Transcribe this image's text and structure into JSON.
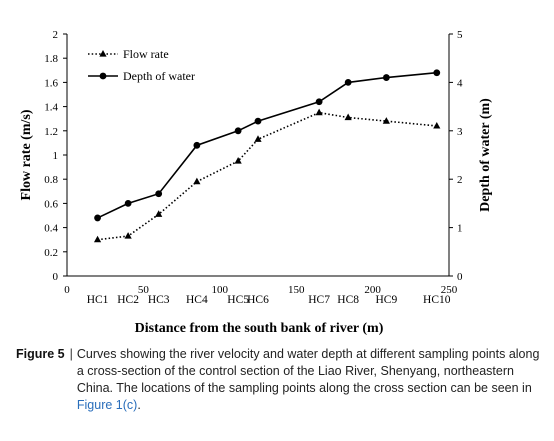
{
  "chart_data": {
    "type": "line",
    "xlabel": "Distance from the south bank of river (m)",
    "ylabel_left": "Flow rate (m/s)",
    "ylabel_right": "Depth of water (m)",
    "xlim": [
      0,
      250
    ],
    "ylim_left": [
      0,
      2
    ],
    "ylim_right": [
      0,
      5
    ],
    "x_ticks": [
      0,
      50,
      100,
      150,
      200,
      250
    ],
    "y_ticks_left": [
      0,
      0.2,
      0.4,
      0.6,
      0.8,
      1,
      1.2,
      1.4,
      1.6,
      1.8,
      2
    ],
    "y_ticks_right": [
      0,
      1,
      2,
      3,
      4,
      5
    ],
    "point_labels": [
      "HC1",
      "HC2",
      "HC3",
      "HC4",
      "HC5",
      "HC6",
      "HC7",
      "HC8",
      "HC9",
      "HC10"
    ],
    "x": [
      20,
      40,
      60,
      85,
      112,
      125,
      165,
      184,
      209,
      242
    ],
    "series": [
      {
        "name": "Flow rate",
        "axis": "left",
        "style": "dotted",
        "marker": "triangle",
        "values": [
          0.3,
          0.33,
          0.51,
          0.78,
          0.95,
          1.13,
          1.35,
          1.31,
          1.28,
          1.24
        ]
      },
      {
        "name": "Depth of water",
        "axis": "right",
        "style": "solid",
        "marker": "circle",
        "values": [
          1.2,
          1.5,
          1.7,
          2.7,
          3.0,
          3.2,
          3.6,
          4.0,
          4.1,
          4.2
        ]
      }
    ],
    "legend_position": "top-left",
    "grid": false
  },
  "caption": {
    "label": "Figure 5",
    "separator": "|",
    "text": "Curves showing the river velocity and water depth at different sampling points along a cross-section of the control section of the Liao River, Shenyang, northeastern China. The locations of the sampling points along the cross section can be seen in",
    "link": "Figure 1(c)",
    "end": "."
  },
  "colors": {
    "series": "#000000",
    "axis": "#000000",
    "caption_link": "#2a6ebb"
  }
}
